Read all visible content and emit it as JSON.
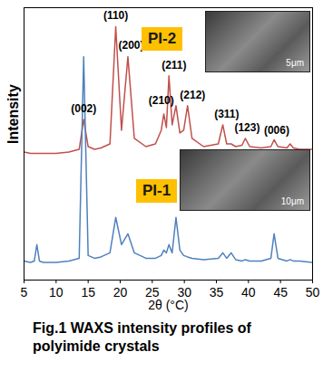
{
  "chart_data": {
    "type": "line",
    "caption": "Fig.1 WAXS intensity profiles of polyimide crystals",
    "x_label": "2θ (°C)",
    "y_label": "Intensity",
    "xlim": [
      5,
      50
    ],
    "xticks": [
      5,
      10,
      15,
      20,
      25,
      30,
      35,
      40,
      45,
      50
    ],
    "ylim": [
      0,
      100
    ],
    "yticks": [],
    "tick_labels": "x",
    "x": [
      5,
      6,
      6.6,
      7,
      7.4,
      8,
      10,
      12,
      13.6,
      14.3,
      15,
      16,
      17,
      18.4,
      19.3,
      20.2,
      21.2,
      22.2,
      24,
      25.5,
      26.4,
      26.8,
      27.2,
      27.6,
      28.1,
      28.7,
      29.3,
      29.9,
      30.5,
      31.2,
      33,
      35.3,
      36,
      36.6,
      37.3,
      38,
      39,
      39.5,
      40.2,
      42,
      43.5,
      44,
      44.6,
      46,
      46.5,
      47,
      48,
      50
    ],
    "series": [
      {
        "name": "PI-2",
        "color": "#c0504d",
        "values": [
          47,
          46.5,
          46.5,
          46.5,
          46.5,
          46.5,
          46.5,
          47,
          48,
          59,
          49,
          48,
          48.5,
          50,
          93,
          55,
          82,
          52,
          49,
          50,
          55,
          61,
          56,
          75,
          57,
          64,
          54,
          55,
          64,
          52,
          49,
          50,
          57,
          50,
          50,
          49,
          49.5,
          52,
          49,
          48.5,
          49,
          51.5,
          49,
          48.5,
          50,
          48.5,
          48,
          48
        ]
      },
      {
        "name": "PI-1",
        "color": "#4f81bd",
        "values": [
          7,
          6.5,
          7,
          13,
          7,
          6.5,
          6.5,
          7,
          8,
          82,
          9,
          8,
          8.5,
          10,
          23,
          13,
          17,
          10,
          8,
          8,
          9,
          11,
          10,
          13,
          10,
          23,
          11,
          9,
          8.5,
          8,
          7.5,
          8,
          10,
          8,
          10,
          7.5,
          7,
          7.5,
          7,
          7,
          8,
          17,
          8,
          7,
          7.5,
          7,
          7,
          6.5
        ]
      }
    ],
    "annotations": [
      {
        "text": "(002)",
        "x": 14.3,
        "y": 63
      },
      {
        "text": "(110)",
        "x": 19.3,
        "y": 97
      },
      {
        "text": "(200)",
        "x": 21.7,
        "y": 86
      },
      {
        "text": "(210)",
        "x": 26.4,
        "y": 66
      },
      {
        "text": "(211)",
        "x": 28.4,
        "y": 79
      },
      {
        "text": "(212)",
        "x": 31.3,
        "y": 68
      },
      {
        "text": "(311)",
        "x": 36.6,
        "y": 61
      },
      {
        "text": "(123)",
        "x": 39.8,
        "y": 56
      },
      {
        "text": "(006)",
        "x": 44.4,
        "y": 55
      }
    ],
    "inset_scale_bars": [
      {
        "series": "PI-2",
        "text": "5μm"
      },
      {
        "series": "PI-1",
        "text": "10μm"
      }
    ]
  }
}
